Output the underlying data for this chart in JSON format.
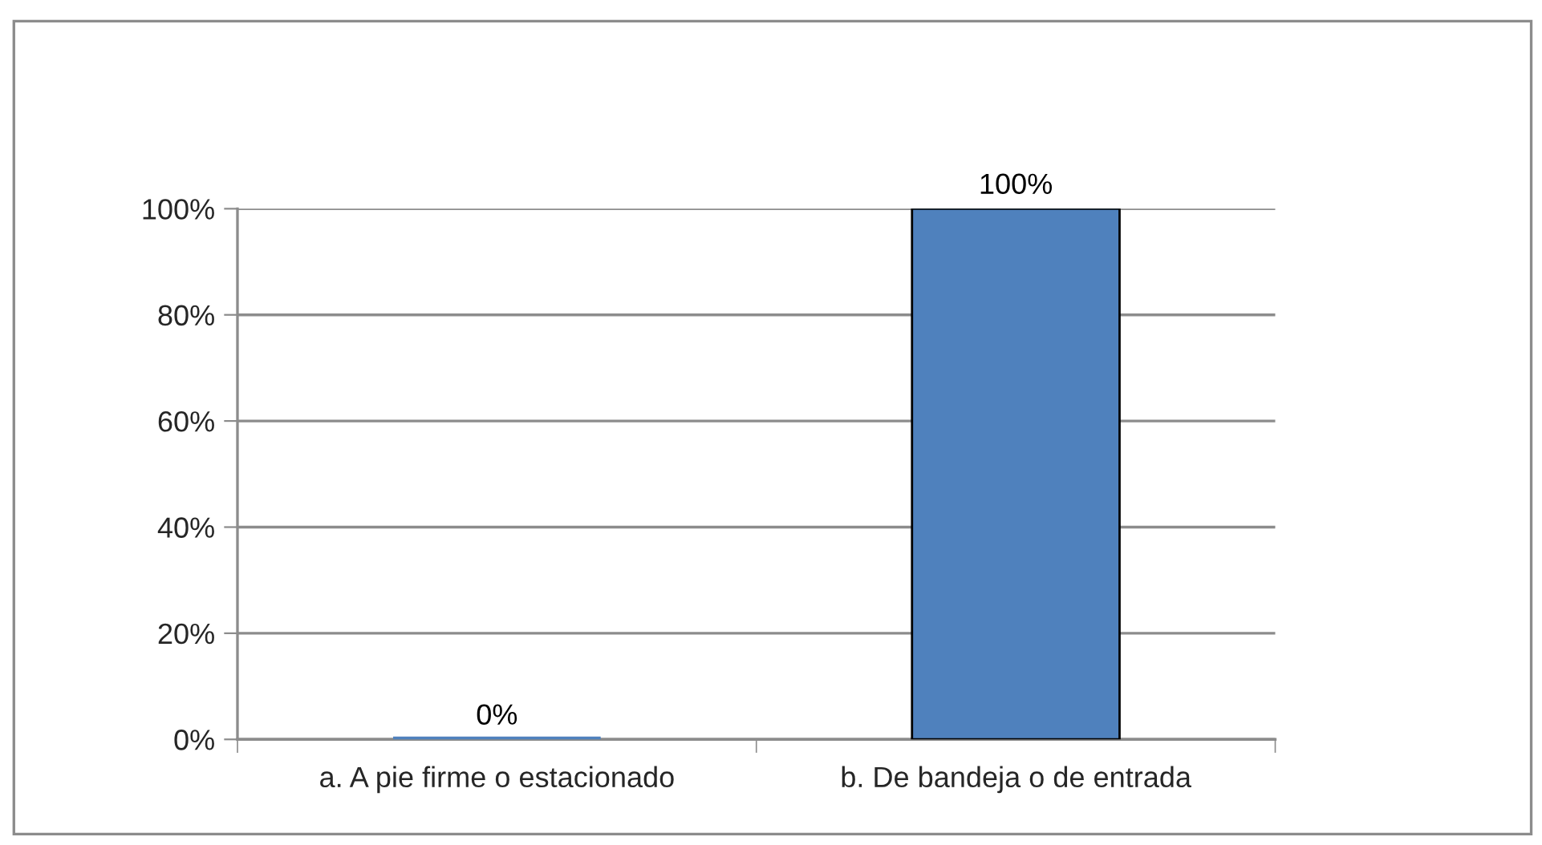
{
  "chart_data": {
    "type": "bar",
    "categories": [
      "a. A pie firme o estacionado",
      "b. De bandeja o de entrada"
    ],
    "values": [
      0,
      100
    ],
    "color": "#4f81bd",
    "value_labels": [
      "0%",
      "100%"
    ],
    "ylim": [
      0,
      100
    ],
    "yticks": [
      {
        "value": 0,
        "label": "0%"
      },
      {
        "value": 20,
        "label": "20%"
      },
      {
        "value": 40,
        "label": "40%"
      },
      {
        "value": 60,
        "label": "60%"
      },
      {
        "value": 80,
        "label": "80%"
      },
      {
        "value": 100,
        "label": "100%"
      }
    ],
    "grid": "y"
  }
}
